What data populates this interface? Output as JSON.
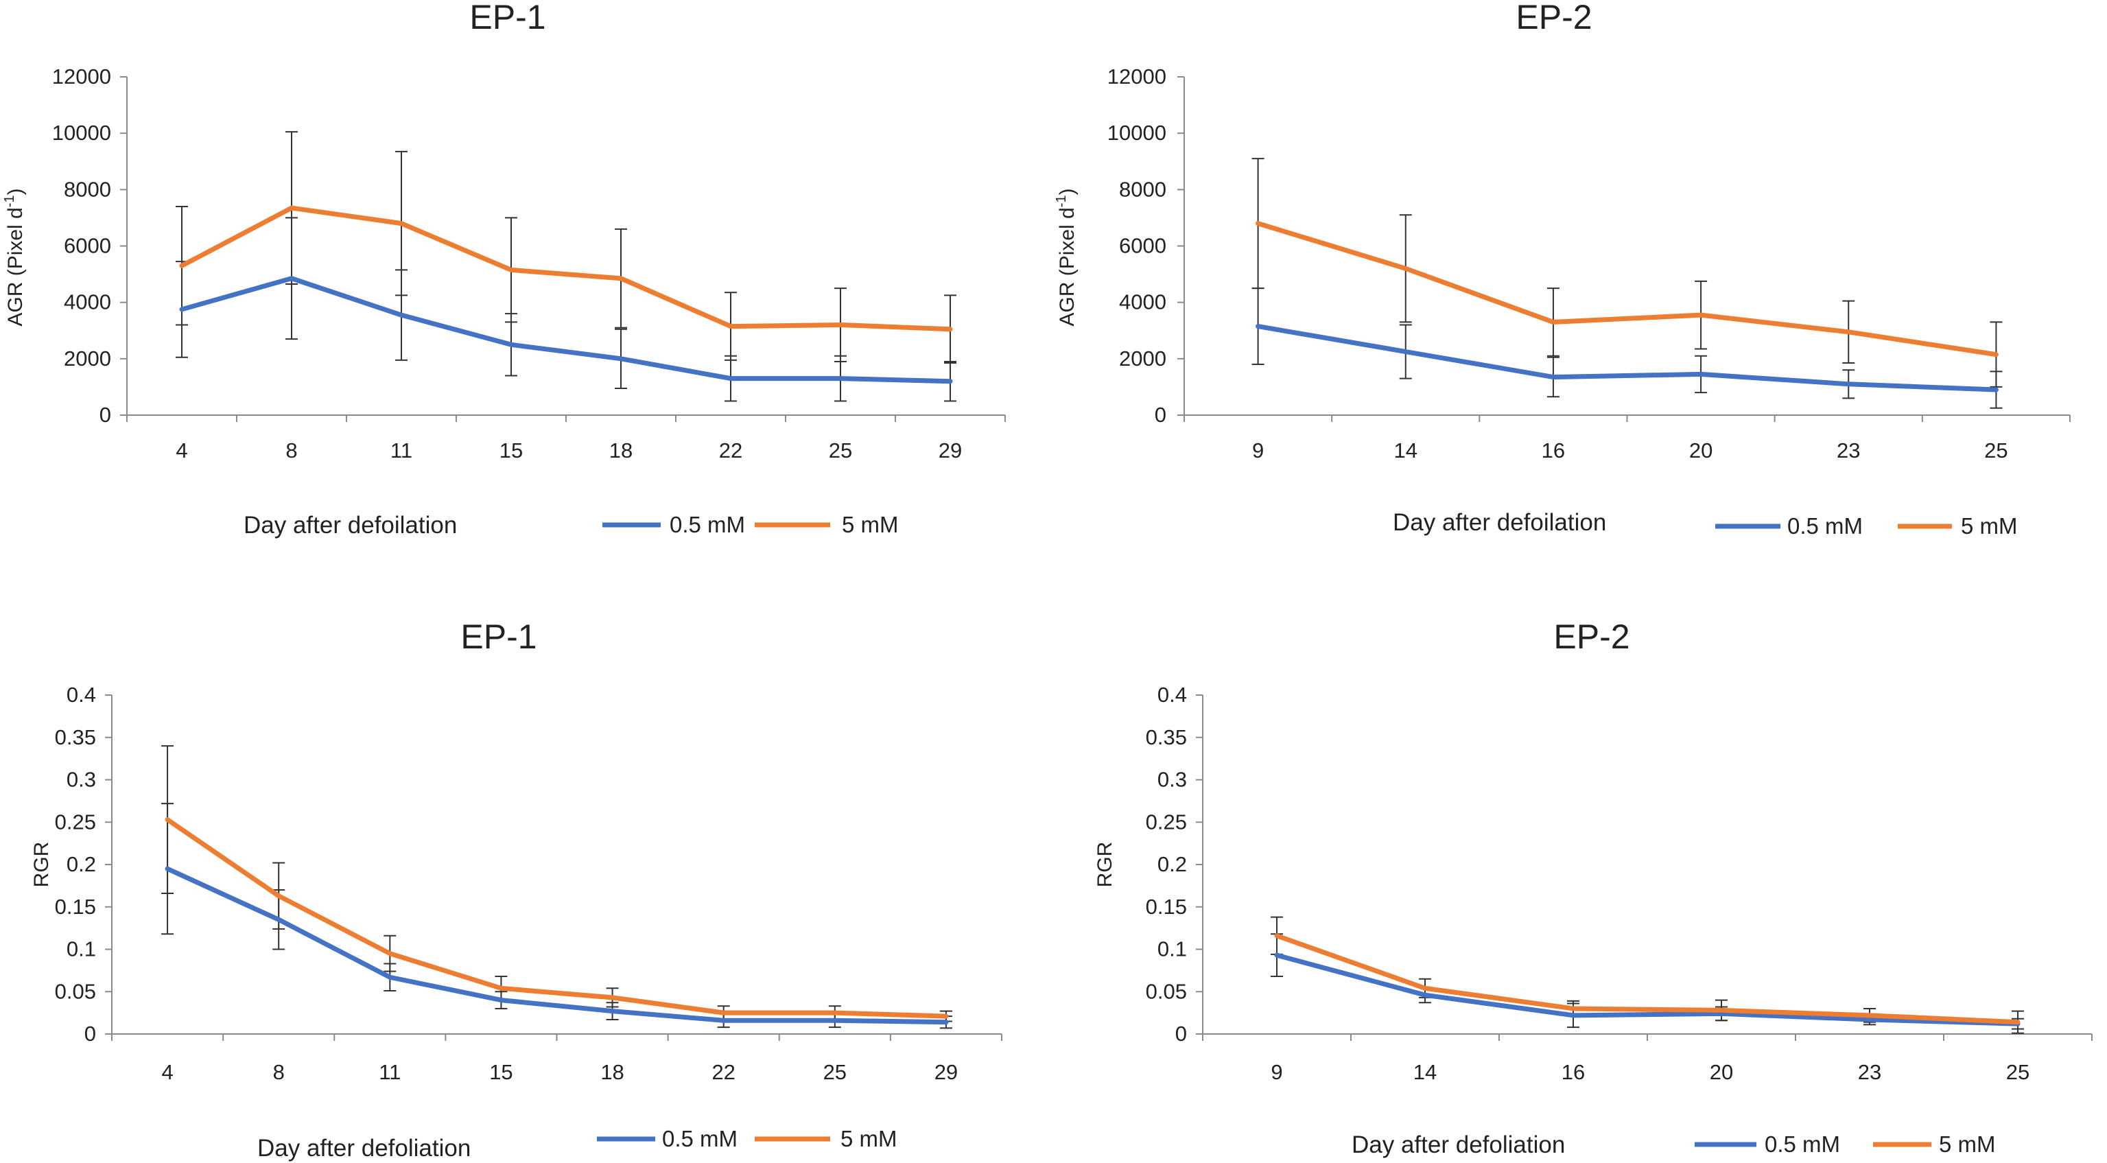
{
  "chart_data": [
    {
      "type": "line",
      "title": "EP-1",
      "xlabel": "Day after defoilation",
      "ylabel": "AGR (Pixel d",
      "ylabel_sup": "-1",
      "ylabel_close": ")",
      "categories": [
        "4",
        "8",
        "11",
        "15",
        "18",
        "22",
        "25",
        "29"
      ],
      "ylim": [
        0,
        12000
      ],
      "yticks": [
        "0",
        "2000",
        "4000",
        "6000",
        "8000",
        "10000",
        "12000"
      ],
      "ytick_values": [
        0,
        2000,
        4000,
        6000,
        8000,
        10000,
        12000
      ],
      "legend": [
        "0.5 mM",
        "5 mM"
      ],
      "series": [
        {
          "name": "0.5 mM",
          "color": "#4472C4",
          "values": [
            3750,
            4850,
            3550,
            2500,
            2000,
            1300,
            1300,
            1200
          ],
          "errors": [
            1700,
            2150,
            1600,
            1100,
            1050,
            800,
            800,
            700
          ]
        },
        {
          "name": "5 mM",
          "color": "#ED7D31",
          "values": [
            5300,
            7350,
            6800,
            5150,
            4850,
            3150,
            3200,
            3050
          ],
          "errors": [
            2100,
            2700,
            2550,
            1850,
            1750,
            1200,
            1300,
            1200
          ]
        }
      ]
    },
    {
      "type": "line",
      "title": "EP-2",
      "xlabel": "Day after defoilation",
      "ylabel": "AGR (Pixel d",
      "ylabel_sup": "-1",
      "ylabel_close": ")",
      "categories": [
        "9",
        "14",
        "16",
        "20",
        "23",
        "25"
      ],
      "ylim": [
        0,
        12000
      ],
      "yticks": [
        "0",
        "2000",
        "4000",
        "6000",
        "8000",
        "10000",
        "12000"
      ],
      "ytick_values": [
        0,
        2000,
        4000,
        6000,
        8000,
        10000,
        12000
      ],
      "legend": [
        "0.5 mM",
        "5 mM"
      ],
      "series": [
        {
          "name": "0.5 mM",
          "color": "#4472C4",
          "values": [
            3150,
            2250,
            1350,
            1450,
            1100,
            900
          ],
          "errors": [
            1350,
            950,
            700,
            650,
            500,
            650
          ]
        },
        {
          "name": "5 mM",
          "color": "#ED7D31",
          "values": [
            6800,
            5200,
            3300,
            3550,
            2950,
            2150
          ],
          "errors": [
            2300,
            1900,
            1200,
            1200,
            1100,
            1150
          ]
        }
      ]
    },
    {
      "type": "line",
      "title": "EP-1",
      "xlabel": "Day after defoliation",
      "ylabel": "RGR",
      "categories": [
        "4",
        "8",
        "11",
        "15",
        "18",
        "22",
        "25",
        "29"
      ],
      "ylim": [
        0,
        0.4
      ],
      "yticks": [
        "0",
        "0.05",
        "0.1",
        "0.15",
        "0.2",
        "0.25",
        "0.3",
        "0.35",
        "0.4"
      ],
      "ytick_values": [
        0,
        0.05,
        0.1,
        0.15,
        0.2,
        0.25,
        0.3,
        0.35,
        0.4
      ],
      "legend": [
        "0.5 mM",
        "5 mM"
      ],
      "series": [
        {
          "name": "0.5 mM",
          "color": "#4472C4",
          "values": [
            0.195,
            0.135,
            0.067,
            0.04,
            0.027,
            0.016,
            0.016,
            0.014
          ],
          "errors": [
            0.077,
            0.035,
            0.016,
            0.01,
            0.01,
            0.008,
            0.008,
            0.007
          ]
        },
        {
          "name": "5 mM",
          "color": "#ED7D31",
          "values": [
            0.253,
            0.163,
            0.095,
            0.054,
            0.043,
            0.025,
            0.025,
            0.021
          ],
          "errors": [
            0.087,
            0.039,
            0.021,
            0.014,
            0.011,
            0.008,
            0.008,
            0.006
          ]
        }
      ]
    },
    {
      "type": "line",
      "title": "EP-2",
      "xlabel": "Day after defoliation",
      "ylabel": "RGR",
      "categories": [
        "9",
        "14",
        "16",
        "20",
        "23",
        "25"
      ],
      "ylim": [
        0,
        0.4
      ],
      "yticks": [
        "0",
        "0.05",
        "0.1",
        "0.15",
        "0.2",
        "0.25",
        "0.3",
        "0.35",
        "0.4"
      ],
      "ytick_values": [
        0,
        0.05,
        0.1,
        0.15,
        0.2,
        0.25,
        0.3,
        0.35,
        0.4
      ],
      "legend": [
        "0.5 mM",
        "5 mM"
      ],
      "series": [
        {
          "name": "0.5 mM",
          "color": "#4472C4",
          "values": [
            0.093,
            0.046,
            0.022,
            0.024,
            0.017,
            0.012
          ],
          "errors": [
            0.025,
            0.009,
            0.014,
            0.008,
            0.006,
            0.006
          ]
        },
        {
          "name": "5 mM",
          "color": "#ED7D31",
          "values": [
            0.116,
            0.054,
            0.03,
            0.028,
            0.022,
            0.014
          ],
          "errors": [
            0.022,
            0.011,
            0.009,
            0.012,
            0.008,
            0.013
          ]
        }
      ]
    }
  ]
}
